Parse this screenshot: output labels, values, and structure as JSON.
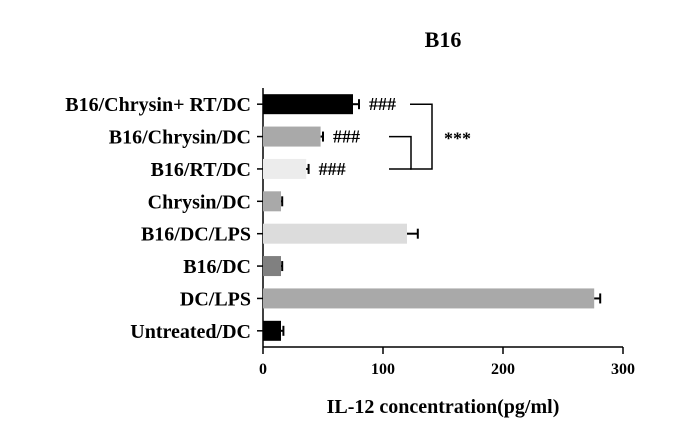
{
  "chart_data": {
    "type": "bar",
    "orientation": "horizontal",
    "title": "B16",
    "xlabel": "IL-12 concentration(pg/ml)",
    "ylabel": "",
    "xlim": [
      0,
      300
    ],
    "xticks": [
      0,
      100,
      200,
      300
    ],
    "grid": false,
    "legend": "none",
    "categories": [
      "B16/Chrysin+ RT/DC",
      "B16/Chrysin/DC",
      "B16/RT/DC",
      "Chrysin/DC",
      "B16/DC/LPS",
      "B16/DC",
      "DC/LPS",
      "Untreated/DC"
    ],
    "values": [
      75,
      48,
      36,
      15,
      120,
      15,
      276,
      15
    ],
    "errors": [
      5,
      2,
      2,
      1,
      9,
      1,
      5,
      2
    ],
    "bar_colors": [
      "#000000",
      "#a9a9a9",
      "#ececec",
      "#a9a9a9",
      "#dcdcdc",
      "#808080",
      "#a9a9a9",
      "#000000"
    ],
    "annotations": [
      {
        "category": "B16/Chrysin+ RT/DC",
        "text": "###"
      },
      {
        "category": "B16/Chrysin/DC",
        "text": "###"
      },
      {
        "category": "B16/RT/DC",
        "text": "###"
      }
    ],
    "brackets": [
      {
        "from": "B16/Chrysin+ RT/DC",
        "to": "B16/RT/DC",
        "text": "***"
      },
      {
        "from": "B16/Chrysin/DC",
        "to": "B16/RT/DC",
        "text": ""
      }
    ]
  }
}
